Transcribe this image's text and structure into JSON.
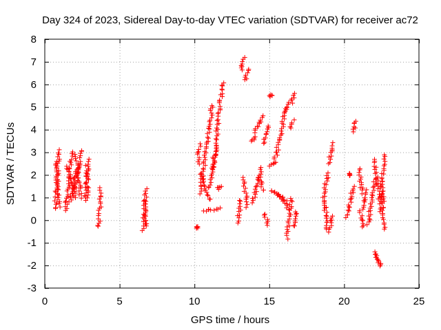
{
  "chart_data": {
    "type": "scatter",
    "title": "Day 324 of 2023, Sidereal Day-to-day VTEC variation (SDTVAR) for receiver ac72",
    "xlabel": "GPS time / hours",
    "ylabel": "SDTVAR / TECUs",
    "xlim": [
      0,
      25
    ],
    "ylim": [
      -3,
      8
    ],
    "xticks": [
      0,
      5,
      10,
      15,
      20,
      25
    ],
    "yticks": [
      -3,
      -2,
      -1,
      0,
      1,
      2,
      3,
      4,
      5,
      6,
      7,
      8
    ],
    "grid": true,
    "marker": "+",
    "colors": {
      "points": "#ff0000",
      "grid": "#a0a0a0",
      "axis": "#000000"
    },
    "segments": [
      {
        "x": [
          0.7,
          0.95
        ],
        "y": [
          0.5,
          3.1
        ]
      },
      {
        "x": [
          0.75,
          0.95
        ],
        "y": [
          2.6,
          0.6
        ]
      },
      {
        "x": [
          1.4,
          1.8
        ],
        "y": [
          0.4,
          3.0
        ]
      },
      {
        "x": [
          1.5,
          2.0
        ],
        "y": [
          2.4,
          1.0
        ]
      },
      {
        "x": [
          1.7,
          2.2
        ],
        "y": [
          0.8,
          2.4
        ]
      },
      {
        "x": [
          2.0,
          2.4
        ],
        "y": [
          1.1,
          3.1
        ]
      },
      {
        "x": [
          2.1,
          2.4
        ],
        "y": [
          2.9,
          1.0
        ]
      },
      {
        "x": [
          2.7,
          2.9
        ],
        "y": [
          0.9,
          2.7
        ]
      },
      {
        "x": [
          2.8,
          2.9
        ],
        "y": [
          2.4,
          1.0
        ]
      },
      {
        "x": [
          3.6,
          3.75
        ],
        "y": [
          -0.3,
          1.4
        ]
      },
      {
        "x": [
          6.6,
          6.75
        ],
        "y": [
          -0.5,
          1.4
        ]
      },
      {
        "x": [
          6.6,
          6.8
        ],
        "y": [
          0.9,
          -0.3
        ]
      },
      {
        "x": [
          10.2,
          10.2
        ],
        "y": [
          -0.35,
          -0.3
        ]
      },
      {
        "x": [
          10.25,
          10.35
        ],
        "y": [
          2.5,
          3.35
        ]
      },
      {
        "x": [
          10.4,
          11.2
        ],
        "y": [
          1.2,
          5.1
        ]
      },
      {
        "x": [
          10.4,
          11.0
        ],
        "y": [
          2.1,
          0.9
        ]
      },
      {
        "x": [
          10.6,
          11.7
        ],
        "y": [
          0.4,
          0.5
        ]
      },
      {
        "x": [
          11.0,
          11.5
        ],
        "y": [
          1.4,
          3.2
        ]
      },
      {
        "x": [
          11.2,
          11.9
        ],
        "y": [
          2.2,
          6.1
        ]
      },
      {
        "x": [
          11.55,
          11.75
        ],
        "y": [
          1.4,
          1.5
        ]
      },
      {
        "x": [
          12.9,
          13.1
        ],
        "y": [
          -0.1,
          0.9
        ]
      },
      {
        "x": [
          13.15,
          13.3
        ],
        "y": [
          6.6,
          7.2
        ]
      },
      {
        "x": [
          13.4,
          13.6
        ],
        "y": [
          6.2,
          6.7
        ]
      },
      {
        "x": [
          13.3,
          13.5
        ],
        "y": [
          1.9,
          0.6
        ]
      },
      {
        "x": [
          13.8,
          14.1
        ],
        "y": [
          3.5,
          3.7
        ]
      },
      {
        "x": [
          14.0,
          14.6
        ],
        "y": [
          3.9,
          4.6
        ]
      },
      {
        "x": [
          13.9,
          14.5
        ],
        "y": [
          0.8,
          2.3
        ]
      },
      {
        "x": [
          14.3,
          14.6
        ],
        "y": [
          1.9,
          1.3
        ]
      },
      {
        "x": [
          14.6,
          14.9
        ],
        "y": [
          3.4,
          4.2
        ]
      },
      {
        "x": [
          14.7,
          14.9
        ],
        "y": [
          0.3,
          -0.2
        ]
      },
      {
        "x": [
          15.0,
          15.5
        ],
        "y": [
          2.4,
          2.6
        ]
      },
      {
        "x": [
          15.1,
          15.1
        ],
        "y": [
          5.5,
          5.5
        ]
      },
      {
        "x": [
          15.1,
          16.1
        ],
        "y": [
          1.3,
          0.9
        ]
      },
      {
        "x": [
          15.4,
          16.1
        ],
        "y": [
          2.7,
          4.9
        ]
      },
      {
        "x": [
          15.6,
          16.3
        ],
        "y": [
          1.2,
          0.5
        ]
      },
      {
        "x": [
          16.1,
          16.3
        ],
        "y": [
          4.8,
          5.2
        ]
      },
      {
        "x": [
          16.2,
          16.5
        ],
        "y": [
          -0.8,
          1.0
        ]
      },
      {
        "x": [
          16.4,
          16.6
        ],
        "y": [
          4.1,
          4.4
        ]
      },
      {
        "x": [
          16.5,
          16.7
        ],
        "y": [
          5.2,
          5.6
        ]
      },
      {
        "x": [
          16.6,
          16.8
        ],
        "y": [
          -0.3,
          0.4
        ]
      },
      {
        "x": [
          18.6,
          18.9
        ],
        "y": [
          0.8,
          2.1
        ]
      },
      {
        "x": [
          18.7,
          18.9
        ],
        "y": [
          0.8,
          -0.4
        ]
      },
      {
        "x": [
          19.0,
          19.2
        ],
        "y": [
          2.5,
          3.4
        ]
      },
      {
        "x": [
          19.0,
          19.2
        ],
        "y": [
          -0.5,
          0.2
        ]
      },
      {
        "x": [
          20.2,
          20.6
        ],
        "y": [
          0.1,
          1.5
        ]
      },
      {
        "x": [
          20.3,
          20.4
        ],
        "y": [
          2.0,
          2.1
        ]
      },
      {
        "x": [
          20.6,
          20.8
        ],
        "y": [
          3.9,
          4.4
        ]
      },
      {
        "x": [
          21.0,
          21.2
        ],
        "y": [
          2.3,
          1.2
        ]
      },
      {
        "x": [
          21.1,
          21.3
        ],
        "y": [
          0.4,
          -0.3
        ]
      },
      {
        "x": [
          21.3,
          21.5
        ],
        "y": [
          0.5,
          1.3
        ]
      },
      {
        "x": [
          21.6,
          22.1
        ],
        "y": [
          -0.2,
          1.9
        ]
      },
      {
        "x": [
          22.0,
          22.4
        ],
        "y": [
          2.7,
          0.8
        ]
      },
      {
        "x": [
          22.0,
          22.4
        ],
        "y": [
          -1.4,
          -2.0
        ]
      },
      {
        "x": [
          22.2,
          22.4
        ],
        "y": [
          -1.6,
          -2.0
        ]
      },
      {
        "x": [
          22.4,
          22.7
        ],
        "y": [
          0.4,
          2.9
        ]
      },
      {
        "x": [
          22.5,
          22.7
        ],
        "y": [
          1.7,
          -0.4
        ]
      }
    ]
  }
}
